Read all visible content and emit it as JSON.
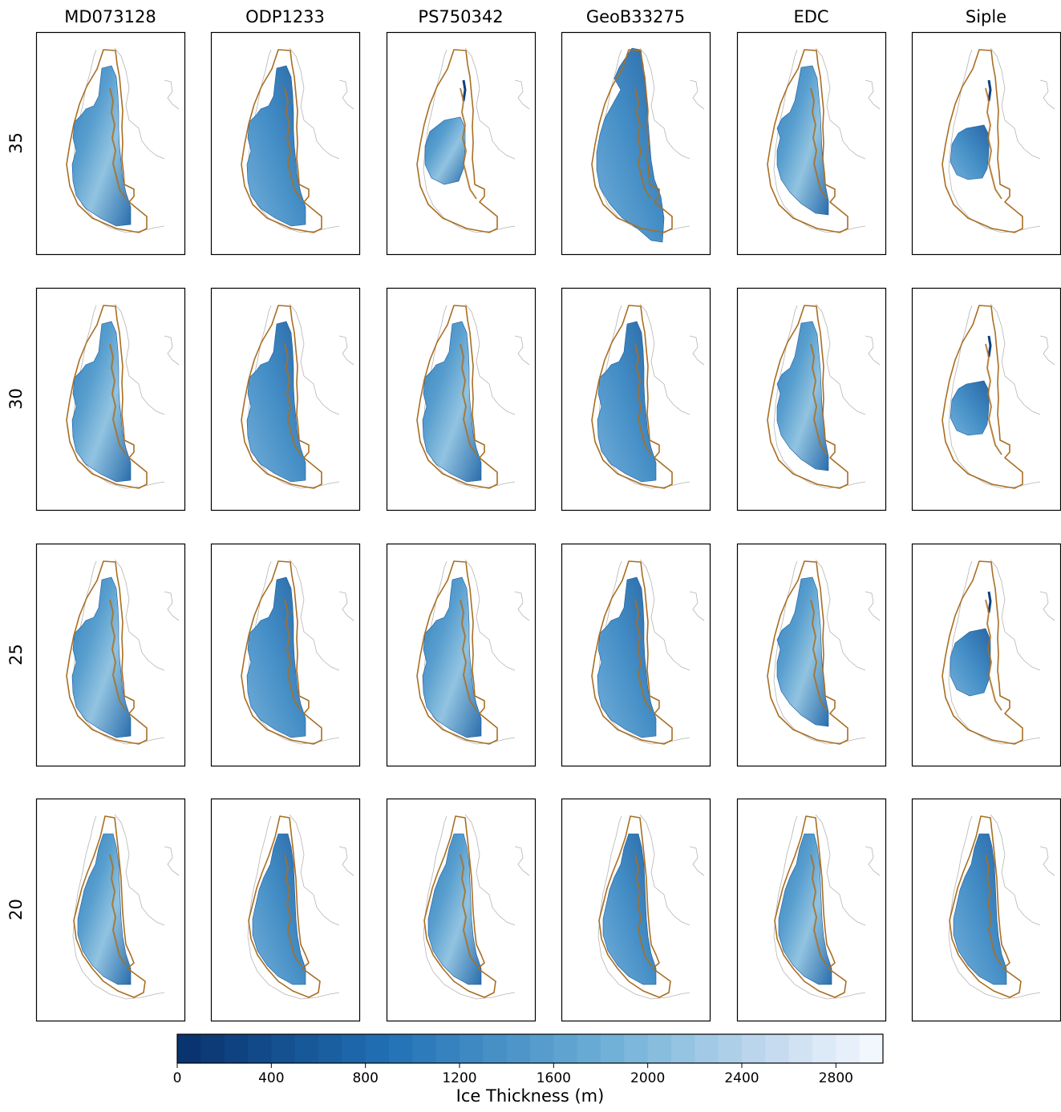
{
  "chart_data": {
    "type": "heatmap",
    "title": "",
    "columns": [
      "MD073128",
      "ODP1233",
      "PS750342",
      "GeoB33275",
      "EDC",
      "Siple"
    ],
    "rows": [
      "35",
      "30",
      "25",
      "20"
    ],
    "panel_extent": {
      "MD073128": {
        "35": "full",
        "30": "full",
        "25": "full",
        "20": "full"
      },
      "ODP1233": {
        "35": "full",
        "30": "full",
        "25": "full",
        "20": "full"
      },
      "PS750342": {
        "35": "reduced",
        "30": "full",
        "25": "full",
        "20": "full"
      },
      "GeoB33275": {
        "35": "extended",
        "30": "full",
        "25": "full",
        "20": "full"
      },
      "EDC": {
        "35": "full",
        "30": "full",
        "25": "full",
        "20": "full"
      },
      "Siple": {
        "35": "reduced",
        "30": "reduced",
        "25": "reduced",
        "20": "full"
      }
    },
    "colorbar": {
      "label": "Ice Thickness (m)",
      "min": 0,
      "max": 3000,
      "step": 100,
      "ticks": [
        "0",
        "400",
        "800",
        "1200",
        "1600",
        "2000",
        "2400",
        "2800"
      ],
      "tick_values": [
        0,
        400,
        800,
        1200,
        1600,
        2000,
        2400,
        2800
      ],
      "cmap": "Blues_r",
      "color_low": "#08306b",
      "color_high": "#f7fbff"
    },
    "colors": {
      "ice_margin_outline": "#a96e22",
      "coastline": "#b5b5b5"
    }
  }
}
